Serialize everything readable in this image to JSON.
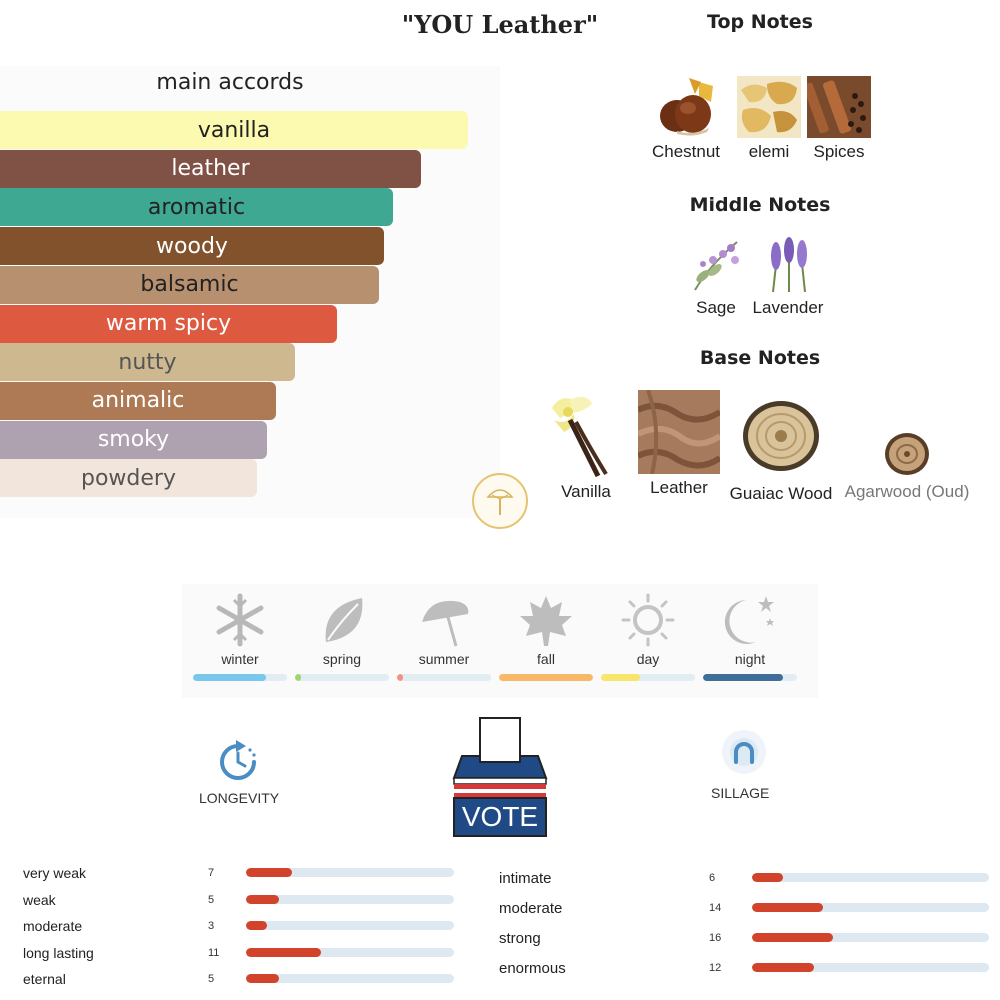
{
  "title": "\"YOU Leather\"",
  "main_accords": {
    "heading": "main accords",
    "items": [
      {
        "label": "vanilla",
        "color": "#fcf9b0",
        "text_color": "#222222",
        "strength": 1.0
      },
      {
        "label": "leather",
        "color": "#805246",
        "text_color": "#ffffff",
        "strength": 0.9
      },
      {
        "label": "aromatic",
        "color": "#3fa893",
        "text_color": "#222222",
        "strength": 0.84
      },
      {
        "label": "woody",
        "color": "#81522c",
        "text_color": "#ffffff",
        "strength": 0.82
      },
      {
        "label": "balsamic",
        "color": "#b79070",
        "text_color": "#222222",
        "strength": 0.81
      },
      {
        "label": "warm spicy",
        "color": "#dd5a40",
        "text_color": "#ffffff",
        "strength": 0.72
      },
      {
        "label": "nutty",
        "color": "#ceb890",
        "text_color": "#555555",
        "strength": 0.63
      },
      {
        "label": "animalic",
        "color": "#ae7a55",
        "text_color": "#ffffff",
        "strength": 0.59
      },
      {
        "label": "smoky",
        "color": "#aea1b0",
        "text_color": "#ffffff",
        "strength": 0.57
      },
      {
        "label": "powdery",
        "color": "#f1e5dc",
        "text_color": "#555555",
        "strength": 0.55
      }
    ]
  },
  "notes": {
    "top": {
      "heading": "Top Notes",
      "items": [
        {
          "label": "Chestnut",
          "icon": "chestnut-icon"
        },
        {
          "label": "elemi",
          "icon": "elemi-resin-icon"
        },
        {
          "label": "Spices",
          "icon": "spices-icon"
        }
      ]
    },
    "middle": {
      "heading": "Middle Notes",
      "items": [
        {
          "label": "Sage",
          "icon": "sage-icon"
        },
        {
          "label": "Lavender",
          "icon": "lavender-icon"
        }
      ]
    },
    "base": {
      "heading": "Base Notes",
      "items": [
        {
          "label": "Vanilla",
          "icon": "vanilla-flower-icon"
        },
        {
          "label": "Leather",
          "icon": "leather-icon"
        },
        {
          "label": "Guaiac Wood",
          "icon": "guaiac-wood-icon"
        },
        {
          "label": "Agarwood (Oud)",
          "icon": "agarwood-icon"
        }
      ]
    }
  },
  "seasons": [
    {
      "label": "winter",
      "icon": "snowflake-icon",
      "fill": 0.78,
      "color": "#79c7ec"
    },
    {
      "label": "spring",
      "icon": "leaf-icon",
      "fill": 0.06,
      "color": "#9bd96e"
    },
    {
      "label": "summer",
      "icon": "umbrella-icon",
      "fill": 0.05,
      "color": "#f39184"
    },
    {
      "label": "fall",
      "icon": "maple-leaf-icon",
      "fill": 1.0,
      "color": "#f7b968"
    },
    {
      "label": "day",
      "icon": "sun-icon",
      "fill": 0.42,
      "color": "#f7e66b"
    },
    {
      "label": "night",
      "icon": "moon-stars-icon",
      "fill": 0.85,
      "color": "#3f6e99"
    }
  ],
  "longevity": {
    "label": "LONGEVITY",
    "icon": "clock-icon",
    "rows": [
      {
        "label": "very weak",
        "count": "7",
        "fill": 0.22
      },
      {
        "label": "weak",
        "count": "5",
        "fill": 0.16
      },
      {
        "label": "moderate",
        "count": "3",
        "fill": 0.1
      },
      {
        "label": "long lasting",
        "count": "11",
        "fill": 0.36
      },
      {
        "label": "eternal",
        "count": "5",
        "fill": 0.16
      }
    ]
  },
  "vote": {
    "label": "VOTE",
    "icon": "ballot-box-icon"
  },
  "sillage": {
    "label": "SILLAGE",
    "icon": "sillage-icon",
    "rows": [
      {
        "label": "intimate",
        "count": "6",
        "fill": 0.13
      },
      {
        "label": "moderate",
        "count": "14",
        "fill": 0.3
      },
      {
        "label": "strong",
        "count": "16",
        "fill": 0.34
      },
      {
        "label": "enormous",
        "count": "12",
        "fill": 0.26
      }
    ]
  }
}
